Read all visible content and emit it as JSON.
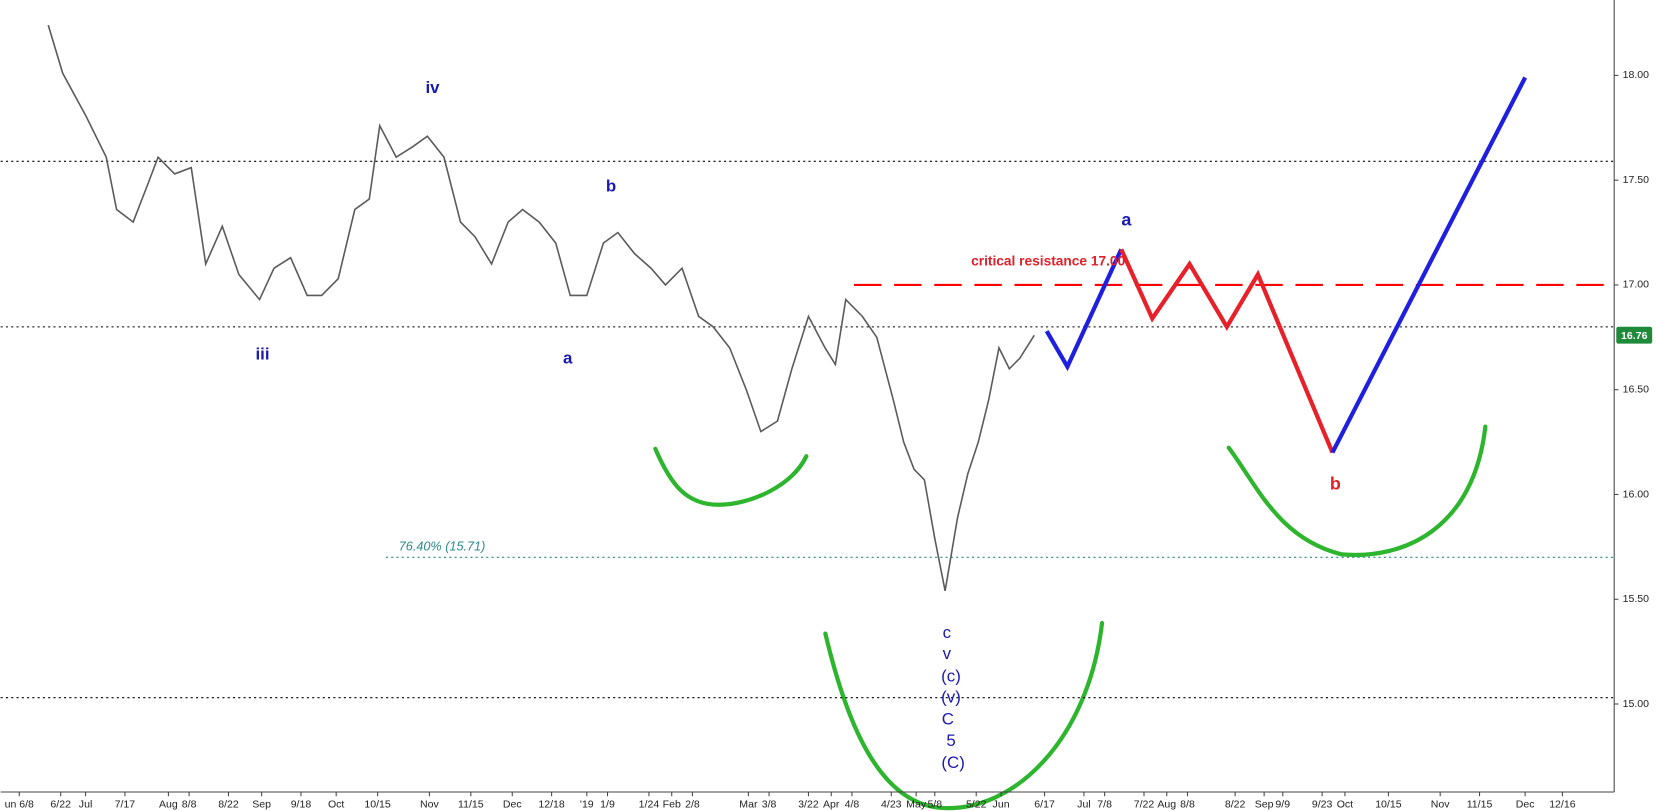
{
  "chart_data": {
    "type": "line",
    "xlim": [
      -0.9,
      77
    ],
    "ylim": [
      14.58,
      18.36
    ],
    "xticks": [
      {
        "value": 0.0,
        "label": "un 6/8"
      },
      {
        "value": 2.0,
        "label": "6/22"
      },
      {
        "value": 3.2,
        "label": "Jul"
      },
      {
        "value": 5.1,
        "label": "7/17"
      },
      {
        "value": 7.2,
        "label": "Aug"
      },
      {
        "value": 8.2,
        "label": "8/8"
      },
      {
        "value": 10.1,
        "label": "8/22"
      },
      {
        "value": 11.7,
        "label": "Sep"
      },
      {
        "value": 13.6,
        "label": "9/18"
      },
      {
        "value": 15.3,
        "label": "Oct"
      },
      {
        "value": 17.3,
        "label": "10/15"
      },
      {
        "value": 19.8,
        "label": "Nov"
      },
      {
        "value": 21.8,
        "label": "11/15"
      },
      {
        "value": 23.8,
        "label": "Dec"
      },
      {
        "value": 25.7,
        "label": "12/18"
      },
      {
        "value": 27.4,
        "label": "'19"
      },
      {
        "value": 28.4,
        "label": "1/9"
      },
      {
        "value": 30.4,
        "label": "1/24"
      },
      {
        "value": 31.5,
        "label": "Feb"
      },
      {
        "value": 32.5,
        "label": "2/8"
      },
      {
        "value": 35.2,
        "label": "Mar"
      },
      {
        "value": 36.2,
        "label": "3/8"
      },
      {
        "value": 38.1,
        "label": "3/22"
      },
      {
        "value": 39.2,
        "label": "Apr"
      },
      {
        "value": 40.2,
        "label": "4/8"
      },
      {
        "value": 42.1,
        "label": "4/23"
      },
      {
        "value": 43.3,
        "label": "May"
      },
      {
        "value": 44.2,
        "label": "5/8"
      },
      {
        "value": 46.2,
        "label": "5/22"
      },
      {
        "value": 47.4,
        "label": "Jun"
      },
      {
        "value": 49.5,
        "label": "6/17"
      },
      {
        "value": 51.4,
        "label": "Jul"
      },
      {
        "value": 52.4,
        "label": "7/8"
      },
      {
        "value": 54.3,
        "label": "7/22"
      },
      {
        "value": 55.4,
        "label": "Aug"
      },
      {
        "value": 56.4,
        "label": "8/8"
      },
      {
        "value": 58.7,
        "label": "8/22"
      },
      {
        "value": 60.1,
        "label": "Sep"
      },
      {
        "value": 61.0,
        "label": "9/9"
      },
      {
        "value": 62.9,
        "label": "9/23"
      },
      {
        "value": 64.0,
        "label": "Oct"
      },
      {
        "value": 66.1,
        "label": "10/15"
      },
      {
        "value": 68.6,
        "label": "Nov"
      },
      {
        "value": 70.5,
        "label": "11/15"
      },
      {
        "value": 72.7,
        "label": "Dec"
      },
      {
        "value": 74.5,
        "label": "12/16"
      }
    ],
    "yticks": [
      {
        "value": 15,
        "label": "15.00"
      },
      {
        "value": 15.5,
        "label": "15.50"
      },
      {
        "value": 16,
        "label": "16.00"
      },
      {
        "value": 16.5,
        "label": "16.50"
      },
      {
        "value": 17,
        "label": "17.00"
      },
      {
        "value": 17.5,
        "label": "17.50"
      },
      {
        "value": 18,
        "label": "18.00"
      }
    ],
    "series": [
      {
        "color": "#5a5a5a",
        "width": 1.5,
        "x": [
          1.4,
          2.1,
          3.2,
          4.2,
          4.7,
          5.5,
          6.2,
          6.7,
          7.5,
          8.3,
          9.0,
          9.8,
          10.6,
          11.6,
          12.3,
          13.1,
          13.9,
          14.6,
          15.4,
          16.2,
          16.9,
          17.4,
          18.2,
          19.0,
          19.7,
          20.5,
          21.3,
          22.0,
          22.8,
          23.6,
          24.3,
          25.1,
          25.9,
          26.6,
          27.4,
          28.2,
          28.9,
          29.7,
          30.5,
          31.2,
          32.0,
          32.8,
          33.5,
          34.3,
          35.1,
          35.8,
          36.6,
          37.3,
          38.1,
          38.9,
          39.4,
          39.9,
          40.7,
          41.4,
          42.2,
          42.7,
          43.2,
          43.7,
          44.2,
          44.7,
          45.3,
          45.8,
          46.3,
          46.8,
          47.3,
          47.8,
          48.3,
          49.0
        ],
        "values": [
          18.24,
          18.01,
          17.81,
          17.61,
          17.36,
          17.3,
          17.48,
          17.61,
          17.53,
          17.56,
          17.1,
          17.28,
          17.05,
          16.93,
          17.08,
          17.13,
          16.95,
          16.95,
          17.03,
          17.36,
          17.41,
          17.76,
          17.61,
          17.66,
          17.71,
          17.61,
          17.3,
          17.23,
          17.1,
          17.3,
          17.36,
          17.3,
          17.2,
          16.95,
          16.95,
          17.2,
          17.25,
          17.15,
          17.08,
          17.0,
          17.08,
          16.85,
          16.8,
          16.7,
          16.5,
          16.3,
          16.35,
          16.6,
          16.85,
          16.7,
          16.62,
          16.93,
          16.85,
          16.75,
          16.45,
          16.25,
          16.12,
          16.07,
          15.79,
          15.54,
          15.89,
          16.1,
          16.25,
          16.45,
          16.7,
          16.6,
          16.65,
          16.76
        ]
      },
      {
        "color": "#1f1fe0",
        "width": 4,
        "x": [
          49.6,
          50.6,
          53.2
        ],
        "values": [
          16.78,
          16.61,
          17.17
        ]
      },
      {
        "color": "#e8202a",
        "width": 4,
        "x": [
          53.2,
          54.7,
          56.5,
          58.3,
          59.8,
          63.4
        ],
        "values": [
          17.17,
          16.84,
          17.1,
          16.8,
          17.05,
          16.2
        ]
      },
      {
        "color": "#1f1fe0",
        "width": 4,
        "x": [
          63.4,
          72.7
        ],
        "values": [
          16.2,
          17.99
        ]
      }
    ],
    "hlines": [
      {
        "value": 17.59,
        "color": "#000000",
        "style": "dotted"
      },
      {
        "value": 16.8,
        "color": "#000000",
        "style": "dotted"
      },
      {
        "value": 15.03,
        "color": "#000000",
        "style": "dotted"
      },
      {
        "value": 17.0,
        "color": "#ff0000",
        "style": "dashed",
        "x_start": 40.3
      },
      {
        "value": 15.7,
        "color": "#2a8a8a",
        "style": "dotted",
        "x_start": 17.7
      }
    ],
    "last_price": {
      "value": 16.76,
      "color": "#1e8a3a"
    },
    "annotations": [
      {
        "text": "iv",
        "color": "#1a1ab0"
      },
      {
        "text": "iii",
        "color": "#1a1ab0"
      },
      {
        "text": "a",
        "color": "#1a1ab0"
      },
      {
        "text": "b",
        "color": "#1a1ab0"
      },
      {
        "text": "a",
        "color": "#1a1ab0"
      },
      {
        "text": "b",
        "color": "#e0202a"
      },
      {
        "text": "c",
        "color": "#1a1ab0"
      },
      {
        "text": "v",
        "color": "#1a1ab0"
      },
      {
        "text": "(c)",
        "color": "#1a1ab0"
      },
      {
        "text": "(v)",
        "color": "#1a1ab0"
      },
      {
        "text": "C",
        "color": "#1a1ab0"
      },
      {
        "text": "5",
        "color": "#1a1ab0"
      },
      {
        "text": "(C)",
        "color": "#1a1ab0"
      },
      {
        "text": "critical resistance 17.00",
        "color": "#e0202a"
      },
      {
        "text": "76.40% (15.71)",
        "color": "#2a8a8a"
      }
    ]
  }
}
